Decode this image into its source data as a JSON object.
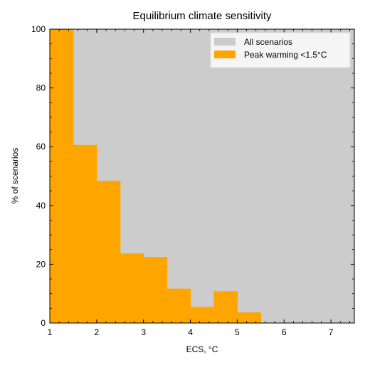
{
  "chart_data": {
    "type": "bar",
    "title": "Equilibrium climate sensitivity",
    "xlabel": "ECS, °C",
    "ylabel": "% of scenarios",
    "xlim": [
      1,
      7.5
    ],
    "ylim": [
      0,
      100
    ],
    "x_ticks": [
      1,
      2,
      3,
      4,
      5,
      6,
      7
    ],
    "x_tick_labels": [
      "1",
      "2",
      "3",
      "4",
      "5",
      "6",
      "7"
    ],
    "y_ticks": [
      0,
      20,
      40,
      60,
      80,
      100
    ],
    "y_tick_labels": [
      "0",
      "20",
      "40",
      "60",
      "80",
      "100"
    ],
    "bin_edges": [
      1.0,
      1.5,
      2.0,
      2.5,
      3.0,
      3.5,
      4.0,
      4.5,
      5.0,
      5.5,
      6.0,
      6.5,
      7.0,
      7.5
    ],
    "series": [
      {
        "name": "All scenarios",
        "color": "#cccccc",
        "values": [
          100,
          100,
          100,
          100,
          100,
          100,
          100,
          100,
          100,
          100,
          100,
          100,
          100
        ]
      },
      {
        "name": "Peak warming <1.5°C",
        "color": "#ffa500",
        "values": [
          100,
          60.6,
          48.4,
          23.7,
          22.5,
          11.7,
          5.5,
          10.8,
          3.6,
          0,
          0,
          0,
          0
        ]
      }
    ],
    "legend_position": "top-right",
    "grid": false
  }
}
